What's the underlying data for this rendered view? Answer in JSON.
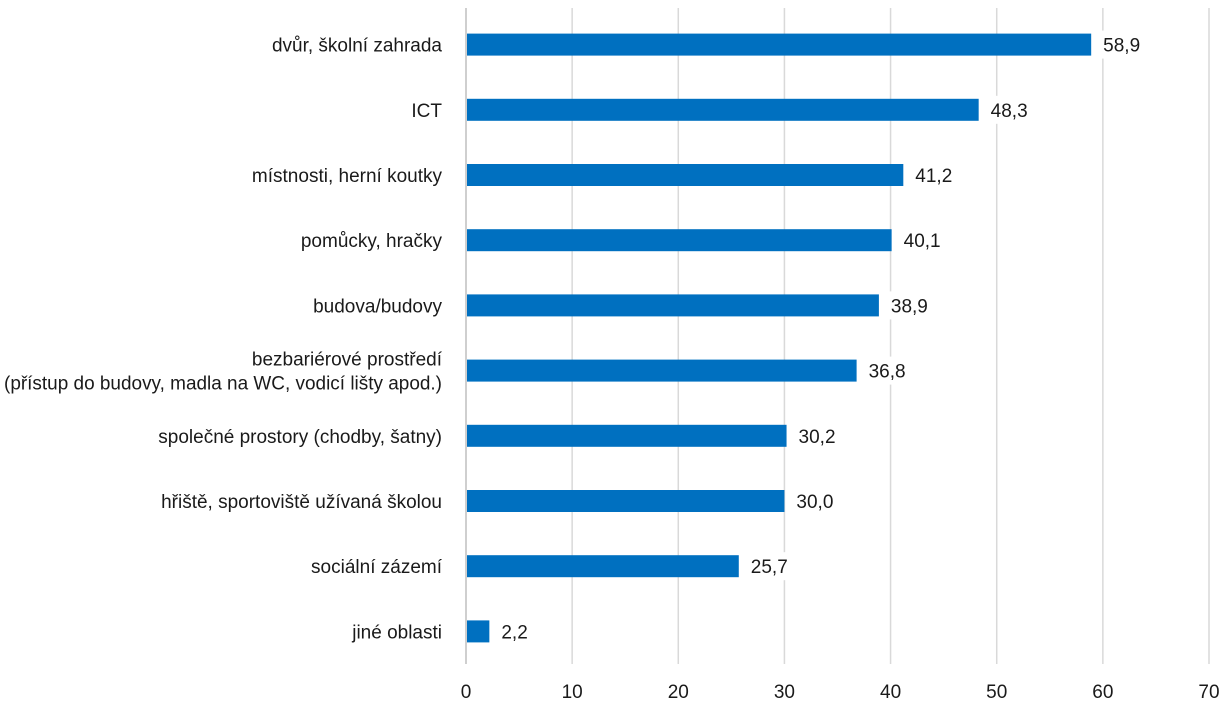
{
  "chart_data": {
    "type": "bar",
    "orientation": "horizontal",
    "categories": [
      [
        "dvůr, školní zahrada"
      ],
      [
        "ICT"
      ],
      [
        "místnosti, herní koutky"
      ],
      [
        "pomůcky, hračky"
      ],
      [
        "budova/budovy"
      ],
      [
        "bezbariérové prostředí",
        "(přístup do budovy, madla na WC, vodicí lišty apod.)"
      ],
      [
        "společné prostory (chodby, šatny)"
      ],
      [
        "hřiště, sportoviště užívaná školou"
      ],
      [
        "sociální zázemí"
      ],
      [
        "jiné oblasti"
      ]
    ],
    "values": [
      58.9,
      48.3,
      41.2,
      40.1,
      38.9,
      36.8,
      30.2,
      30.0,
      25.7,
      2.2
    ],
    "value_labels": [
      "58,9",
      "48,3",
      "41,2",
      "40,1",
      "38,9",
      "36,8",
      "30,2",
      "30,0",
      "25,7",
      "2,2"
    ],
    "xlim": [
      0,
      70
    ],
    "xticks": [
      0,
      10,
      20,
      30,
      40,
      50,
      60,
      70
    ],
    "title": "",
    "xlabel": "",
    "ylabel": "",
    "grid": "vertical",
    "legend": "none",
    "bar_color": "#0070c0"
  }
}
